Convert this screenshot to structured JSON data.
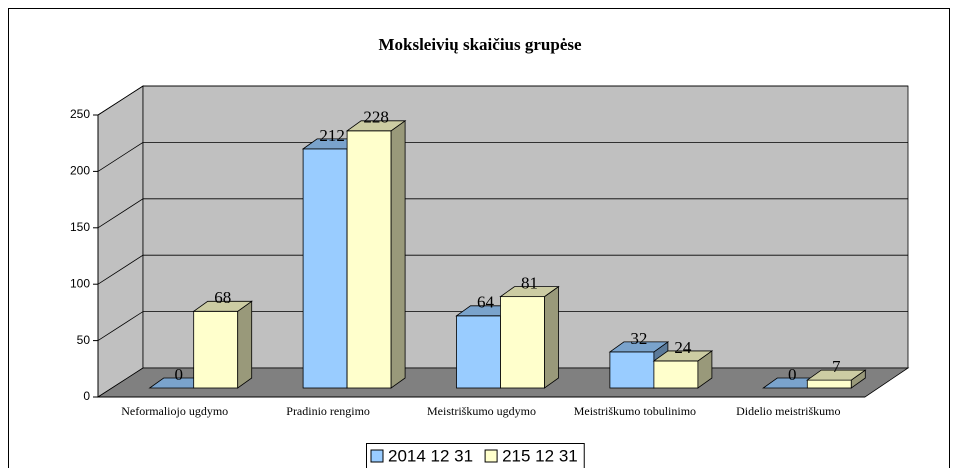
{
  "chart_data": {
    "type": "bar3d",
    "title": "Moksleivių skaičius grupėse",
    "categories": [
      "Neformaliojo ugdymo",
      "Pradinio rengimo",
      "Meistriškumo ugdymo",
      "Meistriškumo tobulinimo",
      "Didelio meistriškumo"
    ],
    "series": [
      {
        "name": "2014 12 31",
        "color": "#99ccff",
        "values": [
          0,
          212,
          64,
          32,
          0
        ]
      },
      {
        "name": "215 12 31",
        "color": "#ffffcc",
        "values": [
          68,
          228,
          81,
          24,
          7
        ]
      }
    ],
    "ylim": [
      0,
      250
    ],
    "yticks": [
      0,
      50,
      100,
      150,
      200,
      250
    ],
    "grid": true
  }
}
